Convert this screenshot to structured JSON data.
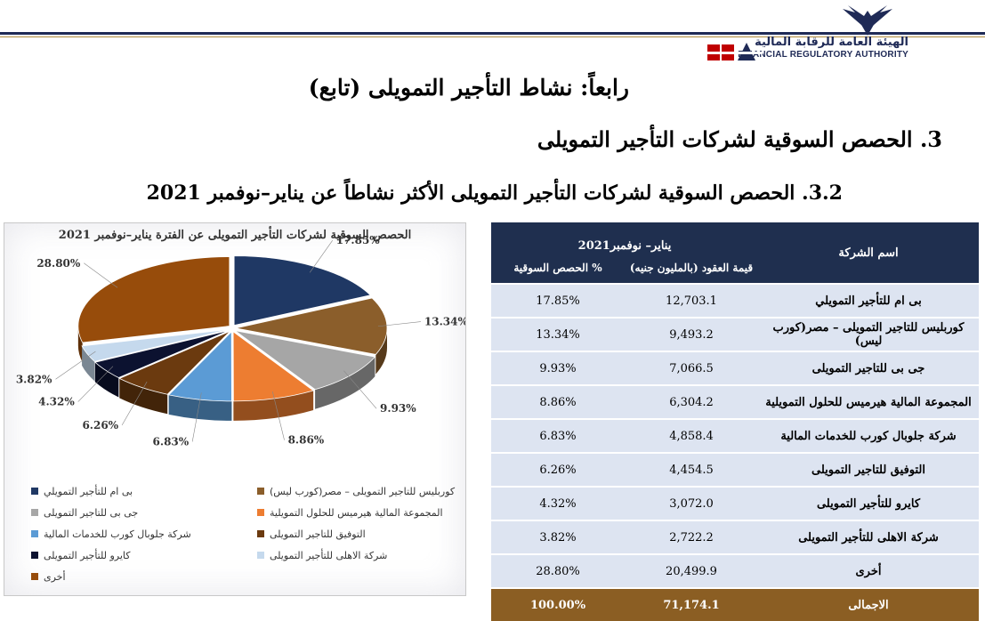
{
  "header": {
    "logo_ar": "الهيئة العامة للرقابة المالية",
    "logo_en": "FINANCIAL REGULATORY AUTHORITY",
    "title": "رابعاً: نشاط التأجير التمويلى (تابع)",
    "section": "3. الحصص السوقية لشركات التأجير التمويلى",
    "subsection": "3.2. الحصص السوقية لشركات التأجير التمويلى الأكثر نشاطاً عن يناير–نوفمبر 2021"
  },
  "colors": {
    "navy": "#1f2f4f",
    "total_brown": "#8b5e23",
    "row_fill": "#dde4f1"
  },
  "chart_data": {
    "type": "pie",
    "title": "الحصص السوقية لشركات التأجير التمويلى عن الفترة يناير–نوفمبر 2021",
    "categories": [
      "بى ام للتأجير التمويلي",
      "كوربليس للتاجير التمويلى – مصر(كورب ليس)",
      "جى بى للتاجير التمويلى",
      "المجموعة المالية هيرميس للحلول التمويلية",
      "شركة جلوبال كورب للخدمات المالية",
      "التوفيق للتاجير التمويلى",
      "كايرو للتأجير التمويلى",
      "شركة الاهلى للتأجير التمويلى",
      "أخرى"
    ],
    "values": [
      17.85,
      13.34,
      9.93,
      8.86,
      6.83,
      6.26,
      4.32,
      3.82,
      28.8
    ],
    "labels": [
      "17.85%",
      "13.34%",
      "9.93%",
      "8.86%",
      "6.83%",
      "6.26%",
      "4.32%",
      "3.82%",
      "28.80%"
    ],
    "colors": [
      "#1f3864",
      "#8b5e2b",
      "#a6a6a6",
      "#ed7d31",
      "#5b9bd5",
      "#6b3a0f",
      "#0c1230",
      "#c5d9ed",
      "#974c0b"
    ],
    "legend_placement": "bottom"
  },
  "table": {
    "period": "يناير– نوفمبر2021",
    "col_company": "اسم الشركة",
    "col_value": "قيمة العقود (بالمليون جنيه)",
    "col_share": "الحصص السوقية %",
    "rows": [
      {
        "name": "بى ام للتأجير التمويلي",
        "value": "12,703.1",
        "share": "17.85%"
      },
      {
        "name": "كوربليس للتاجير التمويلى – مصر(كورب ليس)",
        "value": "9,493.2",
        "share": "13.34%"
      },
      {
        "name": "جى بى للتاجير التمويلى",
        "value": "7,066.5",
        "share": "9.93%"
      },
      {
        "name": "المجموعة المالية هيرميس للحلول التمويلية",
        "value": "6,304.2",
        "share": "8.86%"
      },
      {
        "name": "شركة جلوبال كورب للخدمات المالية",
        "value": "4,858.4",
        "share": "6.83%"
      },
      {
        "name": "التوفيق للتاجير التمويلى",
        "value": "4,454.5",
        "share": "6.26%"
      },
      {
        "name": "كايرو للتأجير التمويلى",
        "value": "3,072.0",
        "share": "4.32%"
      },
      {
        "name": "شركة الاهلى للتأجير التمويلى",
        "value": "2,722.2",
        "share": "3.82%"
      },
      {
        "name": "أخرى",
        "value": "20,499.9",
        "share": "28.80%"
      }
    ],
    "total": {
      "name": "الاجمالى",
      "value": "71,174.1",
      "share": "100.00%"
    }
  }
}
